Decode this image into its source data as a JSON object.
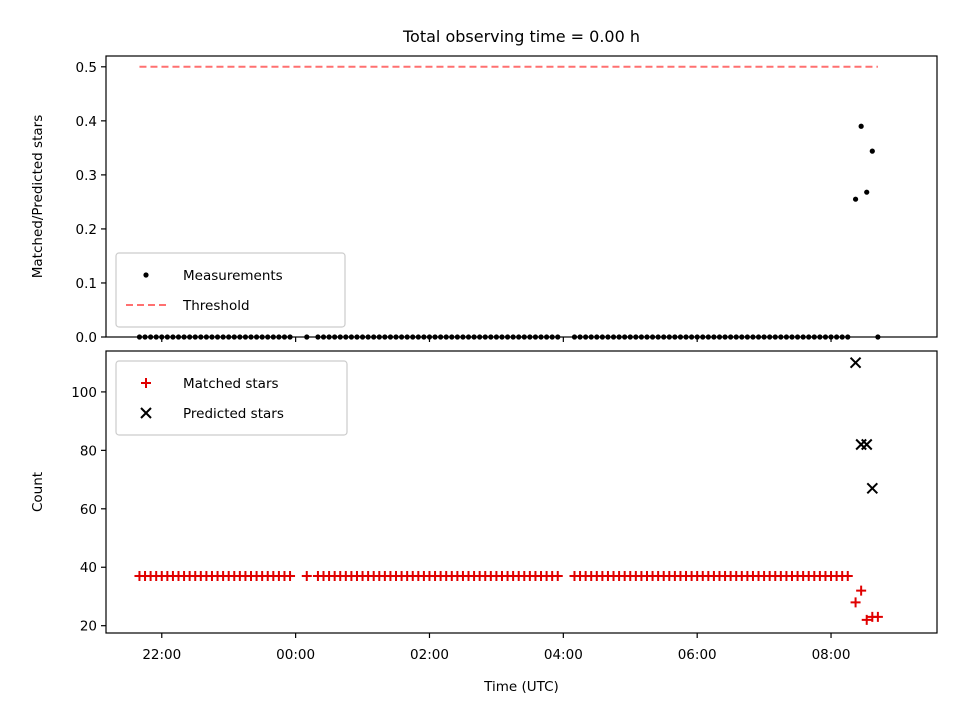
{
  "chart_data": [
    {
      "type": "scatter",
      "title": "Total observing time = 0.00 h",
      "xlabel": "",
      "ylabel": "Matched/Predicted stars",
      "xlim": [
        "21:10",
        "09:35"
      ],
      "ylim": [
        0,
        0.52
      ],
      "yticks": [
        0.0,
        0.1,
        0.2,
        0.3,
        0.4,
        0.5
      ],
      "xticks": [
        "22:00",
        "00:00",
        "02:00",
        "04:00",
        "06:00",
        "08:00"
      ],
      "legend_position": "lower-left",
      "series": [
        {
          "name": "Measurements",
          "kind": "scatter",
          "marker": "dot",
          "color": "#000000",
          "points": [
            [
              "08:22",
              0.255
            ],
            [
              "08:27",
              0.39
            ],
            [
              "08:32",
              0.268
            ],
            [
              "08:37",
              0.344
            ]
          ],
          "zero_run": {
            "start": "21:40",
            "end": "08:17",
            "step_min": 5,
            "gaps": [
              [
                "23:55",
                "00:08"
              ],
              [
                "00:13",
                "00:20"
              ],
              [
                "03:58",
                "04:07"
              ]
            ],
            "value": 0
          },
          "extra_points": [
            [
              "08:42",
              0
            ]
          ]
        },
        {
          "name": "Threshold",
          "kind": "line",
          "style": "dashed",
          "color": "#ff7070",
          "x": [
            "21:40",
            "08:42"
          ],
          "values": [
            0.5,
            0.5
          ]
        }
      ]
    },
    {
      "type": "scatter",
      "title": "",
      "xlabel": "Time (UTC)",
      "ylabel": "Count",
      "xlim": [
        "21:10",
        "09:35"
      ],
      "ylim": [
        17.5,
        114
      ],
      "yticks": [
        20,
        40,
        60,
        80,
        100
      ],
      "xticks": [
        "22:00",
        "00:00",
        "02:00",
        "04:00",
        "06:00",
        "08:00"
      ],
      "legend_position": "upper-left",
      "series": [
        {
          "name": "Matched stars",
          "kind": "scatter",
          "marker": "plus",
          "color": "#e00000",
          "points": [
            [
              "08:22",
              28
            ],
            [
              "08:27",
              32
            ],
            [
              "08:32",
              22
            ],
            [
              "08:37",
              23
            ],
            [
              "08:42",
              23
            ]
          ],
          "constant_run": {
            "start": "21:40",
            "end": "08:17",
            "step_min": 5,
            "gaps": [
              [
                "23:55",
                "00:08"
              ],
              [
                "00:13",
                "00:20"
              ],
              [
                "03:58",
                "04:07"
              ]
            ],
            "value": 37
          }
        },
        {
          "name": "Predicted stars",
          "kind": "scatter",
          "marker": "x",
          "color": "#000000",
          "points": [
            [
              "08:22",
              110
            ],
            [
              "08:27",
              82
            ],
            [
              "08:32",
              82
            ],
            [
              "08:37",
              67
            ]
          ]
        }
      ]
    }
  ]
}
